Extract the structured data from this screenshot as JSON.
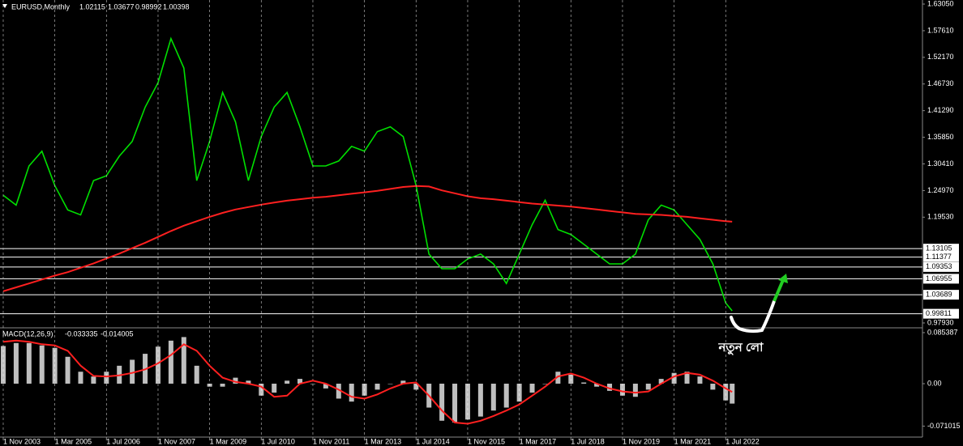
{
  "chart_data": [
    {
      "type": "line",
      "title": "EURUSD,Monthly",
      "open": 1.02115,
      "high": 1.03677,
      "low": 0.98992,
      "x": [
        "2003-11-01",
        "2004-03-01",
        "2004-07-01",
        "2004-11-01",
        "2005-03-01",
        "2005-07-01",
        "2005-11-01",
        "2006-03-01",
        "2006-07-01",
        "2006-11-01",
        "2007-03-01",
        "2007-07-01",
        "2007-11-01",
        "2008-03-01",
        "2008-07-01",
        "2008-11-01",
        "2009-03-01",
        "2009-07-01",
        "2009-11-01",
        "2010-03-01",
        "2010-07-01",
        "2010-11-01",
        "2011-03-01",
        "2011-07-01",
        "2011-11-01",
        "2012-03-01",
        "2012-07-01",
        "2012-11-01",
        "2013-03-01",
        "2013-07-01",
        "2013-11-01",
        "2014-03-01",
        "2014-07-01",
        "2014-11-01",
        "2015-03-01",
        "2015-07-01",
        "2015-11-01",
        "2016-03-01",
        "2016-07-01",
        "2016-11-01",
        "2017-03-01",
        "2017-07-01",
        "2017-11-01",
        "2018-03-01",
        "2018-07-01",
        "2018-11-01",
        "2019-03-01",
        "2019-07-01",
        "2019-11-01",
        "2020-03-01",
        "2020-07-01",
        "2020-11-01",
        "2021-03-01",
        "2021-07-01",
        "2021-11-01",
        "2022-03-01",
        "2022-07-01",
        "2022-09-01"
      ],
      "series": [
        {
          "color": "#00e000",
          "values": [
            1.24,
            1.22,
            1.3,
            1.33,
            1.26,
            1.21,
            1.2,
            1.27,
            1.28,
            1.32,
            1.35,
            1.42,
            1.47,
            1.56,
            1.5,
            1.27,
            1.35,
            1.45,
            1.39,
            1.27,
            1.36,
            1.42,
            1.45,
            1.38,
            1.3,
            1.3,
            1.31,
            1.34,
            1.33,
            1.37,
            1.38,
            1.36,
            1.26,
            1.12,
            1.09,
            1.09,
            1.11,
            1.12,
            1.1,
            1.06,
            1.12,
            1.18,
            1.23,
            1.17,
            1.16,
            1.14,
            1.12,
            1.1,
            1.1,
            1.12,
            1.19,
            1.22,
            1.21,
            1.18,
            1.15,
            1.1,
            1.02,
            1.00398
          ]
        },
        {
          "color": "#ff2020",
          "values": [
            1.044,
            1.052,
            1.06,
            1.068,
            1.076,
            1.083,
            1.092,
            1.101,
            1.111,
            1.121,
            1.132,
            1.143,
            1.155,
            1.167,
            1.178,
            1.187,
            1.196,
            1.204,
            1.211,
            1.216,
            1.221,
            1.225,
            1.229,
            1.232,
            1.235,
            1.237,
            1.24,
            1.243,
            1.246,
            1.249,
            1.253,
            1.257,
            1.259,
            1.258,
            1.25,
            1.244,
            1.238,
            1.234,
            1.232,
            1.229,
            1.226,
            1.223,
            1.221,
            1.219,
            1.217,
            1.214,
            1.211,
            1.208,
            1.205,
            1.202,
            1.201,
            1.2,
            1.198,
            1.196,
            1.193,
            1.19,
            1.187,
            1.186
          ]
        }
      ],
      "xlim": [
        "2003-10-01",
        "2027-08-01"
      ],
      "ylim": [
        0.971,
        1.6388
      ],
      "yticks": [
        {
          "value": 1.6305,
          "label": "1.63050"
        },
        {
          "value": 1.5761,
          "label": "1.57610"
        },
        {
          "value": 1.5217,
          "label": "1.52170"
        },
        {
          "value": 1.4673,
          "label": "1.46730"
        },
        {
          "value": 1.4129,
          "label": "1.41290"
        },
        {
          "value": 1.3585,
          "label": "1.35850"
        },
        {
          "value": 1.3041,
          "label": "1.30410"
        },
        {
          "value": 1.2497,
          "label": "1.24970"
        },
        {
          "value": 1.1953,
          "label": "1.19530"
        },
        {
          "value": 0.9793,
          "label": "0.97930"
        }
      ],
      "levels": [
        1.13105,
        1.11377,
        1.09353,
        {
          "value": 1.06955,
          "label": "1.06955"
        },
        1.03689,
        0.99811
      ],
      "annotation": "নতুন লো"
    },
    {
      "type": "bar",
      "title": "MACD(12,26,9)",
      "series": [
        {
          "type": "bar",
          "color": "#ffffff",
          "values": [
            0.063,
            0.068,
            0.068,
            0.064,
            0.06,
            0.045,
            0.02,
            0.012,
            0.02,
            0.03,
            0.04,
            0.05,
            0.062,
            0.072,
            0.078,
            0.03,
            -0.005,
            -0.005,
            0.01,
            0.005,
            -0.02,
            -0.015,
            0.005,
            0.008,
            0.0,
            -0.008,
            -0.025,
            -0.03,
            -0.02,
            -0.01,
            0.0,
            0.005,
            -0.01,
            -0.04,
            -0.062,
            -0.065,
            -0.06,
            -0.055,
            -0.045,
            -0.04,
            -0.03,
            -0.015,
            0.0,
            0.02,
            0.015,
            0.002,
            -0.005,
            -0.012,
            -0.02,
            -0.022,
            -0.01,
            0.008,
            0.018,
            0.02,
            0.012,
            -0.01,
            -0.028,
            -0.033335
          ]
        },
        {
          "type": "line",
          "color": "#ff2020",
          "values": [
            0.07,
            0.072,
            0.07,
            0.066,
            0.064,
            0.055,
            0.03,
            0.013,
            0.012,
            0.014,
            0.018,
            0.024,
            0.034,
            0.048,
            0.066,
            0.055,
            0.03,
            0.01,
            0.003,
            0.0,
            -0.005,
            -0.022,
            -0.02,
            0.0,
            0.005,
            0.0,
            -0.01,
            -0.022,
            -0.025,
            -0.018,
            -0.008,
            0.0,
            0.002,
            -0.02,
            -0.045,
            -0.065,
            -0.067,
            -0.062,
            -0.054,
            -0.045,
            -0.035,
            -0.02,
            -0.005,
            0.012,
            0.017,
            0.01,
            0.0,
            -0.008,
            -0.013,
            -0.015,
            -0.013,
            0.0,
            0.012,
            0.018,
            0.015,
            0.005,
            -0.008,
            -0.014005
          ]
        }
      ],
      "xlim": [
        "2003-10-01",
        "2027-08-01"
      ],
      "ylim": [
        -0.0894,
        0.0921
      ],
      "yticks": [
        0.085387,
        {
          "value": 0,
          "label": "0.00"
        },
        -0.071015
      ],
      "xticks": [
        {
          "value": "2003-11-01",
          "label": "1 Nov 2003"
        },
        {
          "value": "2005-03-01",
          "label": "1 Mar 2005"
        },
        {
          "value": "2006-07-01",
          "label": "1 Jul 2006"
        },
        {
          "value": "2007-11-01",
          "label": "1 Nov 2007"
        },
        {
          "value": "2009-03-01",
          "label": "1 Mar 2009"
        },
        {
          "value": "2010-07-01",
          "label": "1 Jul 2010"
        },
        {
          "value": "2011-11-01",
          "label": "1 Nov 2011"
        },
        {
          "value": "2013-03-01",
          "label": "1 Mar 2013"
        },
        {
          "value": "2014-07-01",
          "label": "1 Jul 2014"
        },
        {
          "value": "2015-11-01",
          "label": "1 Nov 2015"
        },
        {
          "value": "2017-03-01",
          "label": "1 Mar 2017"
        },
        {
          "value": "2018-07-01",
          "label": "1 Jul 2018"
        },
        {
          "value": "2019-11-01",
          "label": "1 Nov 2019"
        },
        {
          "value": "2021-03-01",
          "label": "1 Mar 2021"
        },
        {
          "value": "2022-07-01",
          "label": "1 Jul 2022"
        }
      ],
      "grid": true
    }
  ]
}
